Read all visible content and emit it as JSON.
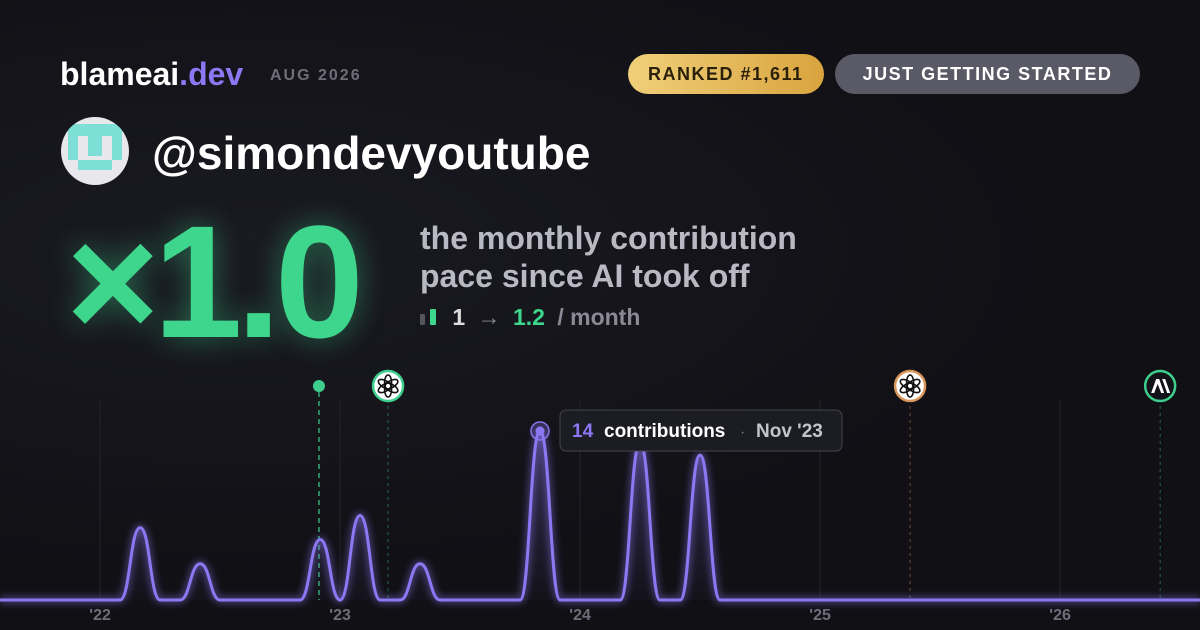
{
  "header": {
    "brand": "blameai",
    "brand_tld": ".dev",
    "date": "AUG 2026",
    "rank": "RANKED #1,611",
    "status": "JUST GETTING STARTED"
  },
  "user": {
    "handle": "@simondevyoutube"
  },
  "multiplier": "×1.0",
  "caption": [
    "the monthly contribution",
    "pace since AI took off"
  ],
  "pace": {
    "before": 1,
    "arrow": "→",
    "after": 1.2,
    "unit": "/ month"
  },
  "chart_data": {
    "type": "line",
    "color": "#8b78f2",
    "x": [
      2021.583,
      2022.083,
      2022.167,
      2022.25,
      2022.333,
      2022.417,
      2022.5,
      2022.833,
      2022.917,
      2023,
      2023.083,
      2023.167,
      2023.25,
      2023.333,
      2023.417,
      2023.75,
      2023.833,
      2023.917,
      2024.167,
      2024.25,
      2024.333,
      2024.417,
      2024.5,
      2024.583,
      2026.583
    ],
    "values": [
      0,
      0,
      6,
      0,
      0,
      3,
      0,
      0,
      5,
      0,
      7,
      0,
      0,
      3,
      0,
      0,
      14,
      0,
      0,
      13,
      0,
      0,
      12,
      0,
      0
    ],
    "xlim": [
      2021.583,
      2026.583
    ],
    "ylim": [
      0,
      14
    ],
    "xticks": [
      {
        "value": 2022,
        "label": "'22"
      },
      {
        "value": 2023,
        "label": "'23"
      },
      {
        "value": 2024,
        "label": "'24"
      },
      {
        "value": 2025,
        "label": "'25"
      },
      {
        "value": 2026,
        "label": "'26"
      }
    ],
    "grid": true,
    "markers": [
      {
        "x": 2022.912,
        "icon": "dot",
        "color": "#3ecf8e"
      },
      {
        "x": 2023.2,
        "icon": "openai",
        "color": "#3ecf8e"
      },
      {
        "x": 2025.375,
        "icon": "openai",
        "color": "#d9965b"
      },
      {
        "x": 2026.417,
        "icon": "anthropic",
        "color": "#3ecf8e"
      }
    ],
    "tooltip": {
      "point": 16,
      "text": "contributions",
      "sep": "·",
      "date": "Nov '23"
    }
  }
}
